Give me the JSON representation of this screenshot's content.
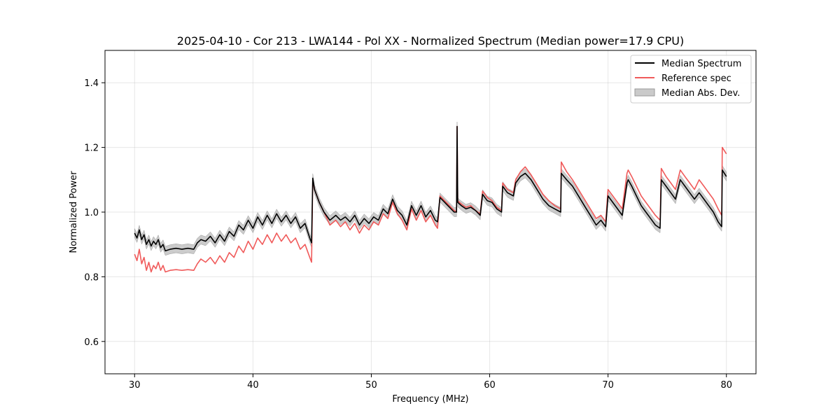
{
  "chart_data": {
    "type": "line",
    "title": "2025-04-10 - Cor 213 - LWA144 - Pol XX - Normalized Spectrum (Median power=17.9 CPU)",
    "xlabel": "Frequency (MHz)",
    "ylabel": "Normalized Power",
    "xlim": [
      27.5,
      82.5
    ],
    "ylim": [
      0.5,
      1.5
    ],
    "xticks": [
      30,
      40,
      50,
      60,
      70,
      80
    ],
    "xtick_labels": [
      "30",
      "40",
      "50",
      "60",
      "70",
      "80"
    ],
    "yticks": [
      0.6,
      0.8,
      1.0,
      1.2,
      1.4
    ],
    "ytick_labels": [
      "0.6",
      "0.8",
      "1.0",
      "1.2",
      "1.4"
    ],
    "grid": true,
    "legend_position": "top-right",
    "legend": [
      "Median Spectrum",
      "Reference spec",
      "Median Abs. Dev."
    ],
    "mad_width": 0.014,
    "series": [
      {
        "name": "Median Spectrum",
        "color": "#000000",
        "x": [
          30.0,
          30.2,
          30.4,
          30.6,
          30.8,
          31.0,
          31.2,
          31.4,
          31.6,
          31.8,
          32.0,
          32.2,
          32.4,
          32.6,
          33.0,
          33.5,
          34.0,
          34.5,
          35.0,
          35.3,
          35.6,
          36.0,
          36.4,
          36.8,
          37.2,
          37.6,
          38.0,
          38.4,
          38.8,
          39.2,
          39.6,
          40.0,
          40.4,
          40.8,
          41.2,
          41.6,
          42.0,
          42.4,
          42.8,
          43.2,
          43.6,
          44.0,
          44.4,
          44.8,
          44.95,
          45.05,
          45.2,
          45.6,
          46.0,
          46.5,
          47.0,
          47.4,
          47.8,
          48.2,
          48.6,
          49.0,
          49.4,
          49.8,
          50.2,
          50.6,
          51.0,
          51.4,
          51.8,
          52.2,
          52.6,
          53.0,
          53.4,
          53.8,
          54.2,
          54.6,
          55.0,
          55.4,
          55.6,
          55.8,
          56.2,
          56.6,
          57.0,
          57.2,
          57.25,
          57.3,
          57.6,
          58.0,
          58.4,
          58.8,
          59.2,
          59.4,
          59.8,
          60.2,
          60.6,
          61.0,
          61.1,
          61.5,
          62.0,
          62.2,
          62.6,
          63.0,
          63.5,
          64.0,
          64.5,
          65.0,
          65.5,
          66.0,
          66.05,
          66.5,
          67.0,
          67.5,
          68.0,
          68.5,
          69.0,
          69.4,
          69.8,
          70.0,
          70.4,
          70.8,
          71.2,
          71.6,
          71.7,
          72.0,
          72.4,
          72.8,
          73.2,
          73.6,
          74.0,
          74.4,
          74.5,
          74.9,
          75.3,
          75.7,
          76.1,
          76.5,
          76.9,
          77.3,
          77.7,
          78.1,
          78.5,
          78.9,
          79.3,
          79.6,
          79.65,
          80.0
        ],
        "y": [
          0.935,
          0.92,
          0.945,
          0.915,
          0.93,
          0.9,
          0.915,
          0.895,
          0.91,
          0.9,
          0.915,
          0.89,
          0.9,
          0.88,
          0.885,
          0.888,
          0.885,
          0.888,
          0.885,
          0.905,
          0.915,
          0.91,
          0.925,
          0.905,
          0.93,
          0.91,
          0.94,
          0.925,
          0.96,
          0.945,
          0.975,
          0.95,
          0.985,
          0.96,
          0.99,
          0.965,
          0.995,
          0.97,
          0.99,
          0.965,
          0.985,
          0.95,
          0.965,
          0.92,
          0.905,
          1.105,
          1.07,
          1.03,
          1.0,
          0.975,
          0.99,
          0.975,
          0.985,
          0.97,
          0.99,
          0.96,
          0.98,
          0.965,
          0.985,
          0.975,
          1.01,
          0.995,
          1.04,
          1.005,
          0.99,
          0.96,
          1.02,
          0.99,
          1.02,
          0.985,
          1.005,
          0.975,
          0.97,
          1.045,
          1.03,
          1.015,
          1.0,
          1.0,
          1.265,
          1.03,
          1.02,
          1.01,
          1.015,
          1.005,
          0.99,
          1.055,
          1.035,
          1.03,
          1.01,
          1.0,
          1.08,
          1.06,
          1.05,
          1.09,
          1.11,
          1.12,
          1.1,
          1.07,
          1.04,
          1.02,
          1.01,
          1.0,
          1.12,
          1.1,
          1.08,
          1.05,
          1.02,
          0.99,
          0.96,
          0.975,
          0.955,
          1.05,
          1.03,
          1.01,
          0.99,
          1.09,
          1.1,
          1.08,
          1.05,
          1.02,
          1.0,
          0.98,
          0.96,
          0.95,
          1.1,
          1.08,
          1.06,
          1.04,
          1.1,
          1.08,
          1.06,
          1.04,
          1.06,
          1.04,
          1.02,
          1.0,
          0.97,
          0.955,
          1.13,
          1.11
        ]
      },
      {
        "name": "Reference spec",
        "color": "#f05a5a",
        "x": [
          30.0,
          30.2,
          30.4,
          30.6,
          30.8,
          31.0,
          31.2,
          31.4,
          31.6,
          31.8,
          32.0,
          32.2,
          32.4,
          32.6,
          33.0,
          33.5,
          34.0,
          34.5,
          35.0,
          35.3,
          35.6,
          36.0,
          36.4,
          36.8,
          37.2,
          37.6,
          38.0,
          38.4,
          38.8,
          39.2,
          39.6,
          40.0,
          40.4,
          40.8,
          41.2,
          41.6,
          42.0,
          42.4,
          42.8,
          43.2,
          43.6,
          44.0,
          44.4,
          44.8,
          44.95,
          45.05,
          45.2,
          45.6,
          46.0,
          46.5,
          47.0,
          47.4,
          47.8,
          48.2,
          48.6,
          49.0,
          49.4,
          49.8,
          50.2,
          50.6,
          51.0,
          51.4,
          51.8,
          52.2,
          52.6,
          53.0,
          53.4,
          53.8,
          54.2,
          54.6,
          55.0,
          55.4,
          55.6,
          55.8,
          56.2,
          56.6,
          57.0,
          57.2,
          57.25,
          57.3,
          57.6,
          58.0,
          58.4,
          58.8,
          59.2,
          59.4,
          59.8,
          60.2,
          60.6,
          61.0,
          61.1,
          61.5,
          62.0,
          62.2,
          62.6,
          63.0,
          63.5,
          64.0,
          64.5,
          65.0,
          65.5,
          66.0,
          66.05,
          66.5,
          67.0,
          67.5,
          68.0,
          68.5,
          69.0,
          69.4,
          69.8,
          70.0,
          70.4,
          70.8,
          71.2,
          71.6,
          71.7,
          72.0,
          72.4,
          72.8,
          73.2,
          73.6,
          74.0,
          74.4,
          74.5,
          74.9,
          75.3,
          75.7,
          76.1,
          76.5,
          76.9,
          77.3,
          77.7,
          78.1,
          78.5,
          78.9,
          79.3,
          79.6,
          79.65,
          80.0
        ],
        "y": [
          0.87,
          0.85,
          0.885,
          0.84,
          0.86,
          0.82,
          0.845,
          0.815,
          0.835,
          0.825,
          0.845,
          0.82,
          0.835,
          0.815,
          0.82,
          0.822,
          0.82,
          0.822,
          0.82,
          0.84,
          0.855,
          0.845,
          0.86,
          0.84,
          0.865,
          0.845,
          0.875,
          0.86,
          0.895,
          0.875,
          0.91,
          0.885,
          0.92,
          0.9,
          0.93,
          0.905,
          0.935,
          0.91,
          0.93,
          0.905,
          0.92,
          0.885,
          0.9,
          0.86,
          0.845,
          1.1,
          1.07,
          1.03,
          1.0,
          0.96,
          0.975,
          0.955,
          0.97,
          0.945,
          0.965,
          0.935,
          0.96,
          0.945,
          0.97,
          0.96,
          0.995,
          0.98,
          1.03,
          0.995,
          0.975,
          0.945,
          1.01,
          0.975,
          1.005,
          0.97,
          0.99,
          0.96,
          0.95,
          1.05,
          1.035,
          1.02,
          1.005,
          1.0,
          1.265,
          1.035,
          1.025,
          1.015,
          1.02,
          1.005,
          0.995,
          1.065,
          1.045,
          1.035,
          1.015,
          1.005,
          1.09,
          1.07,
          1.06,
          1.1,
          1.125,
          1.14,
          1.115,
          1.085,
          1.055,
          1.035,
          1.02,
          1.01,
          1.155,
          1.125,
          1.1,
          1.07,
          1.04,
          1.01,
          0.98,
          0.99,
          0.97,
          1.07,
          1.05,
          1.03,
          1.01,
          1.12,
          1.13,
          1.11,
          1.08,
          1.05,
          1.03,
          1.01,
          0.99,
          0.975,
          1.135,
          1.11,
          1.09,
          1.07,
          1.13,
          1.11,
          1.09,
          1.07,
          1.1,
          1.08,
          1.06,
          1.04,
          1.01,
          0.99,
          1.2,
          1.18
        ]
      }
    ]
  }
}
